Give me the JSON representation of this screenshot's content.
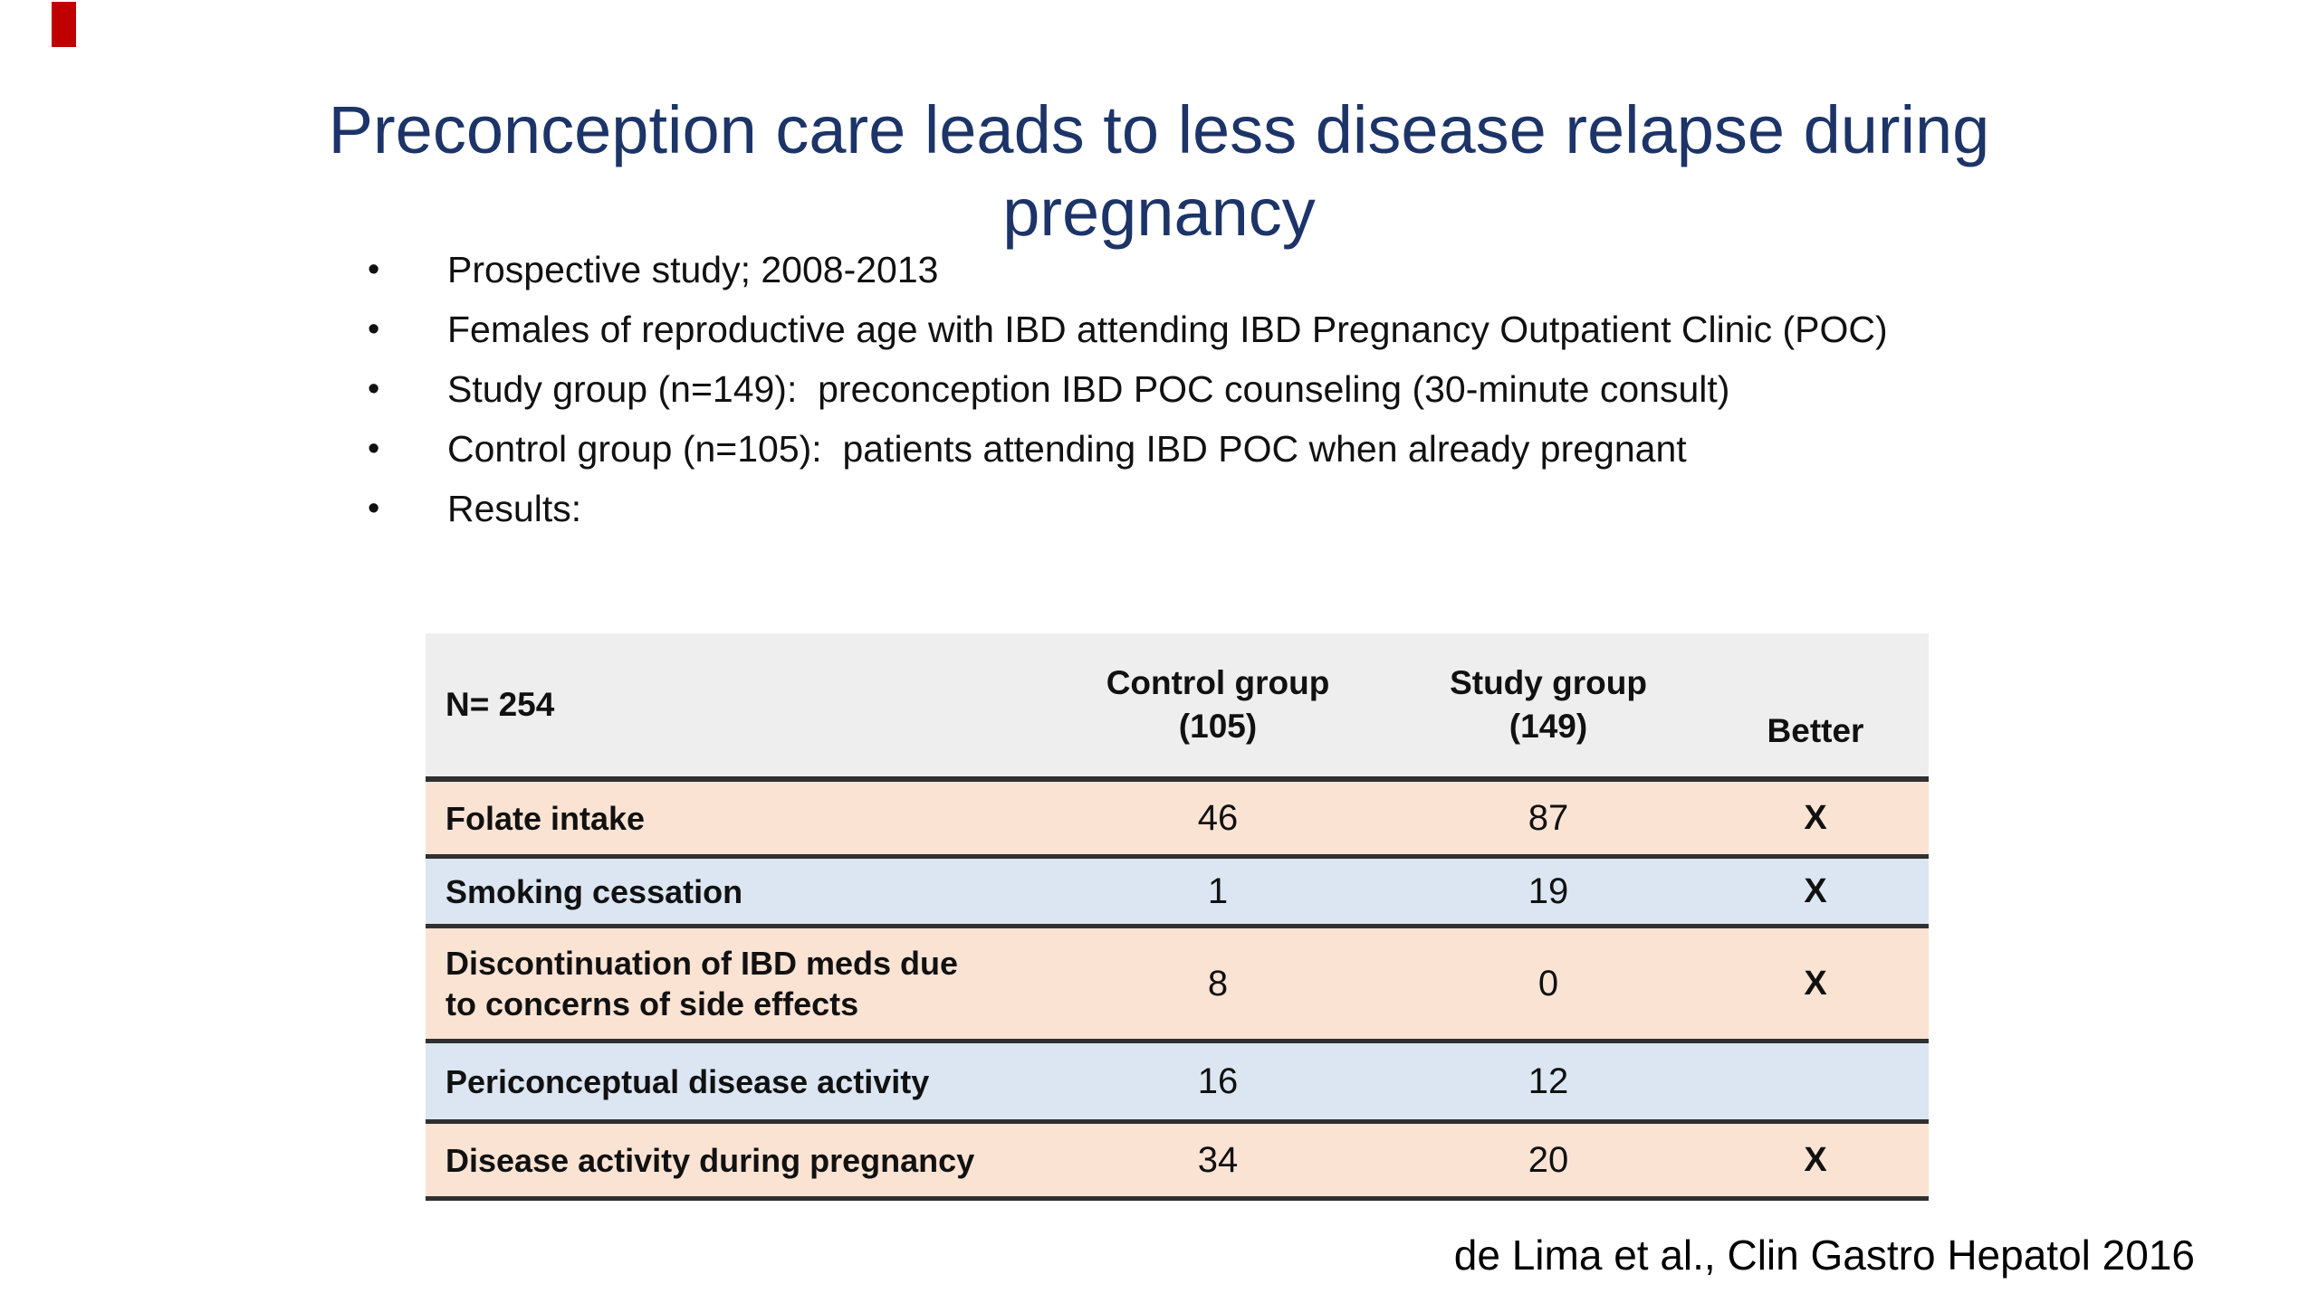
{
  "title": {
    "line1": "Preconception care leads to less disease relapse during",
    "line2": "pregnancy"
  },
  "bullets": {
    "marker": "•",
    "items": [
      "Prospective study; 2008-2013",
      "Females of reproductive age with IBD attending IBD Pregnancy Outpatient Clinic (POC)",
      "Study group (n=149):  preconception IBD POC counseling (30-minute consult)",
      "Control group (n=105):  patients attending IBD POC when already pregnant",
      "Results:"
    ]
  },
  "table": {
    "header": {
      "n_label": "N= 254",
      "control_line1": "Control group",
      "control_line2": "(105)",
      "study_line1": "Study group",
      "study_line2": "(149)",
      "better": "Better"
    },
    "rows": [
      {
        "label": "Folate intake",
        "control": "46",
        "study": "87",
        "better": "X"
      },
      {
        "label": "Smoking cessation",
        "control": "1",
        "study": "19",
        "better": "X"
      },
      {
        "label": "Discontinuation of IBD meds due\nto concerns of side effects",
        "control": "8",
        "study": "0",
        "better": "X"
      },
      {
        "label": "Periconceptual disease activity",
        "control": "16",
        "study": "12",
        "better": ""
      },
      {
        "label": "Disease activity during pregnancy",
        "control": "34",
        "study": "20",
        "better": "X"
      }
    ]
  },
  "citation": {
    "text": "de Lima et al., Clin Gastro Hepatol 2016"
  },
  "colors": {
    "title_navy": "#1c3468",
    "row_peach": "#fbe3d4",
    "row_blue": "#dbe6f2",
    "header_gray": "#eeeeee",
    "border_dark": "#303030",
    "marker_red": "#c00000"
  }
}
